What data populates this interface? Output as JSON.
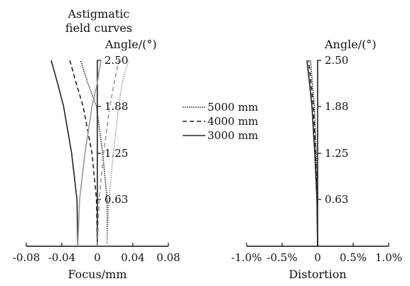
{
  "chart_data": [
    {
      "type": "line",
      "title": "Astigmatic field curves",
      "title_lines": [
        "Astigmatic",
        "field curves"
      ],
      "xlabel": "Focus/mm",
      "ylabel": "Angle/(°)",
      "xlim": [
        -0.08,
        0.08
      ],
      "ylim": [
        0,
        2.5
      ],
      "x_ticks": [
        "-0.08",
        "-0.04",
        "0",
        "0.04",
        "0.08"
      ],
      "y_ticks": [
        "0.63",
        "1.25",
        "1.88",
        "2.50"
      ],
      "x_tick_values": [
        -0.08,
        -0.04,
        0,
        0.04,
        0.08
      ],
      "y_tick_values": [
        0.63,
        1.25,
        1.88,
        2.5
      ],
      "series": [
        {
          "name": "5000 mm",
          "style": "dotted",
          "color": "#222222",
          "curve": "tangential",
          "x": [
            0.011,
            0.011,
            0.006,
            -0.001,
            -0.011,
            -0.019
          ],
          "y": [
            0,
            0.63,
            1.25,
            1.88,
            2.2,
            2.5
          ]
        },
        {
          "name": "5000 mm",
          "style": "dotted",
          "color": "#999999",
          "curve": "sagittal",
          "x": [
            0.011,
            0.013,
            0.018,
            0.024,
            0.028,
            0.035
          ],
          "y": [
            0,
            0.63,
            1.25,
            1.88,
            2.2,
            2.5
          ]
        },
        {
          "name": "4000 mm",
          "style": "dashed",
          "color": "#222222",
          "curve": "tangential",
          "x": [
            0.0,
            -0.001,
            -0.006,
            -0.016,
            -0.024,
            -0.031
          ],
          "y": [
            0,
            0.63,
            1.25,
            1.88,
            2.2,
            2.5
          ]
        },
        {
          "name": "4000 mm",
          "style": "dashed",
          "color": "#999999",
          "curve": "sagittal",
          "x": [
            0.0,
            0.002,
            0.007,
            0.014,
            0.019,
            0.024
          ],
          "y": [
            0,
            0.63,
            1.25,
            1.88,
            2.2,
            2.5
          ]
        },
        {
          "name": "3000 mm",
          "style": "solid",
          "color": "#222222",
          "curve": "tangential",
          "x": [
            -0.022,
            -0.023,
            -0.029,
            -0.038,
            -0.045,
            -0.052
          ],
          "y": [
            0,
            0.63,
            1.25,
            1.88,
            2.2,
            2.5
          ]
        },
        {
          "name": "3000 mm",
          "style": "solid",
          "color": "#999999",
          "curve": "sagittal",
          "x": [
            -0.022,
            -0.02,
            -0.014,
            -0.006,
            0.0,
            0.004
          ],
          "y": [
            0,
            0.63,
            1.25,
            1.88,
            2.2,
            2.5
          ]
        }
      ]
    },
    {
      "type": "line",
      "title": "",
      "xlabel": "Distortion",
      "ylabel": "Angle/(°)",
      "xlim": [
        -1.0,
        1.0
      ],
      "ylim": [
        0,
        2.5
      ],
      "x_ticks": [
        "-1.0%",
        "-0.5%",
        "0",
        "0.5%",
        "1.0%"
      ],
      "y_ticks": [
        "0.63",
        "1.25",
        "1.88",
        "2.50"
      ],
      "x_tick_values": [
        -1.0,
        -0.5,
        0,
        0.5,
        1.0
      ],
      "y_tick_values": [
        0.63,
        1.25,
        1.88,
        2.5
      ],
      "series": [
        {
          "name": "5000 mm",
          "style": "dotted",
          "color": "#222222",
          "x": [
            0.0,
            -0.005,
            -0.02,
            -0.045,
            -0.075,
            -0.1
          ],
          "y": [
            0,
            0.63,
            1.25,
            1.88,
            2.2,
            2.5
          ]
        },
        {
          "name": "4000 mm",
          "style": "dashed",
          "color": "#222222",
          "x": [
            0.0,
            -0.008,
            -0.03,
            -0.06,
            -0.095,
            -0.125
          ],
          "y": [
            0,
            0.63,
            1.25,
            1.88,
            2.2,
            2.5
          ]
        },
        {
          "name": "3000 mm",
          "style": "solid",
          "color": "#222222",
          "x": [
            0.0,
            -0.01,
            -0.04,
            -0.08,
            -0.115,
            -0.15
          ],
          "y": [
            0,
            0.63,
            1.25,
            1.88,
            2.2,
            2.5
          ]
        }
      ]
    }
  ],
  "legend": {
    "placement": "center",
    "entries": [
      {
        "label": "5000 mm",
        "style": "dotted"
      },
      {
        "label": "4000 mm",
        "style": "dashed"
      },
      {
        "label": "3000 mm",
        "style": "solid"
      }
    ]
  }
}
